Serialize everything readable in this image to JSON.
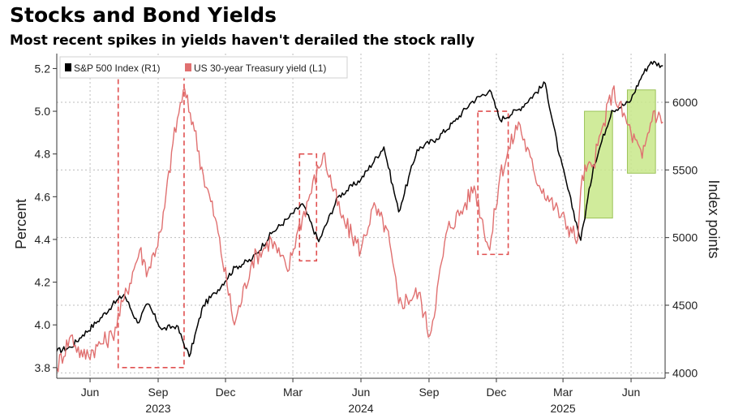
{
  "chart_data": {
    "type": "line",
    "title": "Stocks and Bond Yields",
    "subtitle": "Most recent spikes in yields haven't derailed the stock rally",
    "left_axis": {
      "label": "Percent",
      "ylim": [
        3.75,
        5.27
      ],
      "ticks": [
        "3.8",
        "4.0",
        "4.2",
        "4.4",
        "4.6",
        "4.8",
        "5.0",
        "5.2"
      ]
    },
    "right_axis": {
      "label": "Index points",
      "ylim": [
        3960,
        6360
      ],
      "ticks": [
        "4000",
        "4500",
        "5000",
        "5500",
        "6000"
      ]
    },
    "x_axis": {
      "range": [
        "2023-05-01",
        "2025-07-31"
      ],
      "month_ticks": [
        {
          "label": "Jun",
          "date": "2023-06-15"
        },
        {
          "label": "Sep",
          "date": "2023-09-15"
        },
        {
          "label": "Dec",
          "date": "2023-12-15"
        },
        {
          "label": "Mar",
          "date": "2024-03-15"
        },
        {
          "label": "Jun",
          "date": "2024-06-15"
        },
        {
          "label": "Sep",
          "date": "2024-09-15"
        },
        {
          "label": "Dec",
          "date": "2024-12-15"
        },
        {
          "label": "Mar",
          "date": "2025-03-15"
        },
        {
          "label": "Jun",
          "date": "2025-06-15"
        }
      ],
      "year_ticks": [
        {
          "label": "2023",
          "date": "2023-09-15"
        },
        {
          "label": "2024",
          "date": "2024-06-15"
        },
        {
          "label": "2025",
          "date": "2025-03-15"
        }
      ]
    },
    "series": [
      {
        "name": "S&P 500 Index (R1)",
        "axis": "right",
        "color": "#000000",
        "points": [
          [
            "2023-05-01",
            4160
          ],
          [
            "2023-05-20",
            4190
          ],
          [
            "2023-06-05",
            4280
          ],
          [
            "2023-06-25",
            4380
          ],
          [
            "2023-07-15",
            4500
          ],
          [
            "2023-07-31",
            4580
          ],
          [
            "2023-08-18",
            4370
          ],
          [
            "2023-09-01",
            4510
          ],
          [
            "2023-09-20",
            4320
          ],
          [
            "2023-10-10",
            4350
          ],
          [
            "2023-10-27",
            4120
          ],
          [
            "2023-11-15",
            4500
          ],
          [
            "2023-12-01",
            4590
          ],
          [
            "2023-12-28",
            4780
          ],
          [
            "2024-01-20",
            4840
          ],
          [
            "2024-02-15",
            5030
          ],
          [
            "2024-03-10",
            5150
          ],
          [
            "2024-03-28",
            5250
          ],
          [
            "2024-04-19",
            4970
          ],
          [
            "2024-05-15",
            5300
          ],
          [
            "2024-06-15",
            5430
          ],
          [
            "2024-07-16",
            5670
          ],
          [
            "2024-08-05",
            5190
          ],
          [
            "2024-08-30",
            5650
          ],
          [
            "2024-09-25",
            5730
          ],
          [
            "2024-10-20",
            5860
          ],
          [
            "2024-11-11",
            6000
          ],
          [
            "2024-12-06",
            6090
          ],
          [
            "2024-12-20",
            5870
          ],
          [
            "2025-01-15",
            5950
          ],
          [
            "2025-02-19",
            6140
          ],
          [
            "2025-03-10",
            5610
          ],
          [
            "2025-04-08",
            4980
          ],
          [
            "2025-04-25",
            5520
          ],
          [
            "2025-05-20",
            5940
          ],
          [
            "2025-06-13",
            6000
          ],
          [
            "2025-06-30",
            6200
          ],
          [
            "2025-07-12",
            6300
          ],
          [
            "2025-07-28",
            6270
          ]
        ]
      },
      {
        "name": "US 30-year Treasury yield (L1)",
        "axis": "left",
        "color": "#e07070",
        "points": [
          [
            "2023-05-01",
            3.8
          ],
          [
            "2023-05-20",
            3.95
          ],
          [
            "2023-06-05",
            3.85
          ],
          [
            "2023-06-25",
            3.9
          ],
          [
            "2023-07-15",
            3.95
          ],
          [
            "2023-07-31",
            4.12
          ],
          [
            "2023-08-21",
            4.35
          ],
          [
            "2023-09-01",
            4.25
          ],
          [
            "2023-09-20",
            4.45
          ],
          [
            "2023-10-05",
            4.85
          ],
          [
            "2023-10-19",
            5.1
          ],
          [
            "2023-11-01",
            4.95
          ],
          [
            "2023-11-15",
            4.7
          ],
          [
            "2023-12-01",
            4.5
          ],
          [
            "2023-12-27",
            4.0
          ],
          [
            "2024-01-20",
            4.3
          ],
          [
            "2024-02-15",
            4.4
          ],
          [
            "2024-03-08",
            4.25
          ],
          [
            "2024-03-20",
            4.42
          ],
          [
            "2024-04-25",
            4.8
          ],
          [
            "2024-05-20",
            4.5
          ],
          [
            "2024-06-15",
            4.35
          ],
          [
            "2024-07-01",
            4.55
          ],
          [
            "2024-07-20",
            4.45
          ],
          [
            "2024-08-05",
            4.1
          ],
          [
            "2024-09-01",
            4.15
          ],
          [
            "2024-09-16",
            3.95
          ],
          [
            "2024-10-10",
            4.45
          ],
          [
            "2024-11-01",
            4.55
          ],
          [
            "2024-11-15",
            4.65
          ],
          [
            "2024-12-06",
            4.35
          ],
          [
            "2024-12-20",
            4.7
          ],
          [
            "2025-01-14",
            4.95
          ],
          [
            "2025-02-05",
            4.7
          ],
          [
            "2025-03-04",
            4.55
          ],
          [
            "2025-04-04",
            4.4
          ],
          [
            "2025-04-10",
            4.7
          ],
          [
            "2025-04-25",
            4.75
          ],
          [
            "2025-05-21",
            5.1
          ],
          [
            "2025-06-15",
            4.9
          ],
          [
            "2025-06-30",
            4.78
          ],
          [
            "2025-07-15",
            5.0
          ],
          [
            "2025-07-28",
            4.95
          ]
        ]
      }
    ],
    "annotations": [
      {
        "style": "dashed-box",
        "color": "#e05050",
        "x": [
          "2023-07-23",
          "2023-10-20"
        ],
        "y_left": [
          3.8,
          5.2
        ]
      },
      {
        "style": "dashed-box",
        "color": "#e05050",
        "x": [
          "2024-03-24",
          "2024-04-16"
        ],
        "y_left": [
          4.3,
          4.8
        ]
      },
      {
        "style": "dashed-box",
        "color": "#e05050",
        "x": [
          "2024-11-20",
          "2024-12-31"
        ],
        "y_left": [
          4.33,
          5.0
        ]
      },
      {
        "style": "shaded-box",
        "color": "#c8e88a",
        "x": [
          "2025-04-13",
          "2025-05-21"
        ],
        "y_left": [
          4.5,
          5.0
        ]
      },
      {
        "style": "shaded-box",
        "color": "#c8e88a",
        "x": [
          "2025-06-10",
          "2025-07-18"
        ],
        "y_left": [
          4.71,
          5.1
        ]
      }
    ],
    "grid": true,
    "legend": "top-left"
  }
}
